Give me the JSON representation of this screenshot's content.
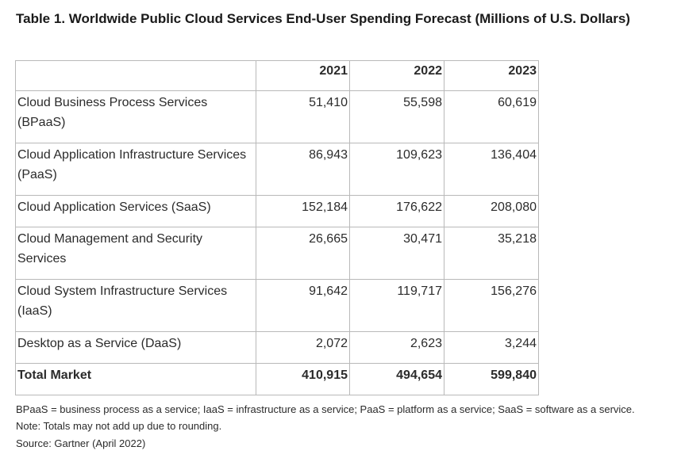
{
  "title": "Table 1. Worldwide Public Cloud Services End-User Spending Forecast (Millions of U.S. Dollars)",
  "table": {
    "headers": [
      "",
      "2021",
      "2022",
      "2023"
    ],
    "rows": [
      {
        "label": "Cloud Business Process Services (BPaaS)",
        "values": [
          "51,410",
          "55,598",
          "60,619"
        ]
      },
      {
        "label": "Cloud Application Infrastructure Services (PaaS)",
        "values": [
          "86,943",
          "109,623",
          "136,404"
        ]
      },
      {
        "label": "Cloud Application Services (SaaS)",
        "values": [
          "152,184",
          "176,622",
          "208,080"
        ]
      },
      {
        "label": "Cloud Management and Security Services",
        "values": [
          "26,665",
          "30,471",
          "35,218"
        ]
      },
      {
        "label": "Cloud System Infrastructure Services (IaaS)",
        "values": [
          "91,642",
          "119,717",
          "156,276"
        ]
      },
      {
        "label": "Desktop as a Service (DaaS)",
        "values": [
          "2,072",
          "2,623",
          "3,244"
        ]
      }
    ],
    "total": {
      "label": "Total Market",
      "values": [
        "410,915",
        "494,654",
        "599,840"
      ]
    }
  },
  "note": "BPaaS = business process as a service; IaaS = infrastructure as a service; PaaS = platform as a service; SaaS = software as a service. Note: Totals may not add up due to rounding.",
  "source": "Source: Gartner (April 2022)"
}
